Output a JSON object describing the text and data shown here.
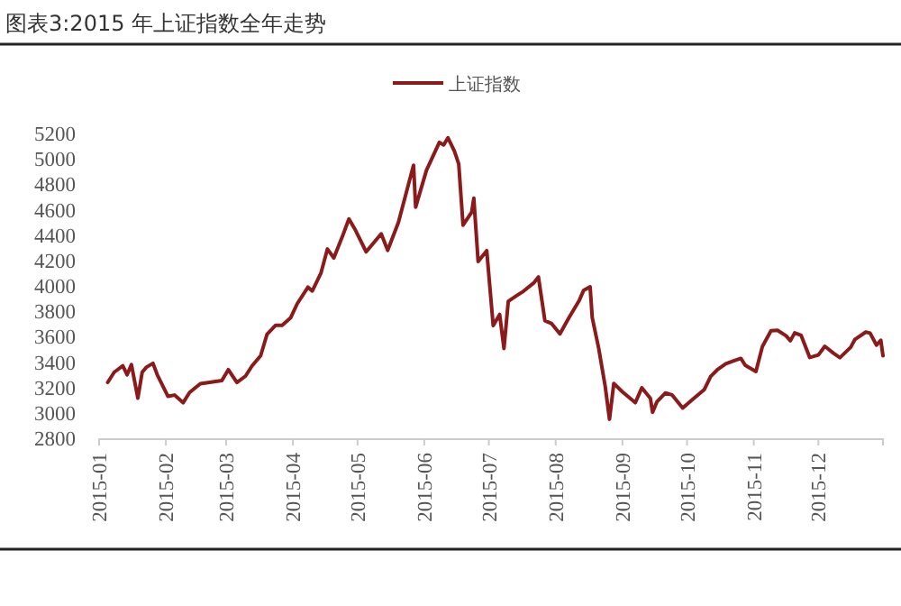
{
  "chart_data": {
    "type": "line",
    "title": "图表3:2015 年上证指数全年走势",
    "x": [
      "2015-01-05",
      "2015-01-08",
      "2015-01-12",
      "2015-01-14",
      "2015-01-16",
      "2015-01-19",
      "2015-01-21",
      "2015-01-23",
      "2015-01-26",
      "2015-01-28",
      "2015-02-02",
      "2015-02-05",
      "2015-02-09",
      "2015-02-12",
      "2015-02-17",
      "2015-02-27",
      "2015-03-02",
      "2015-03-06",
      "2015-03-10",
      "2015-03-13",
      "2015-03-17",
      "2015-03-20",
      "2015-03-24",
      "2015-03-27",
      "2015-03-31",
      "2015-04-03",
      "2015-04-08",
      "2015-04-10",
      "2015-04-14",
      "2015-04-17",
      "2015-04-20",
      "2015-04-24",
      "2015-04-27",
      "2015-04-30",
      "2015-05-05",
      "2015-05-12",
      "2015-05-15",
      "2015-05-20",
      "2015-05-27",
      "2015-05-28",
      "2015-06-02",
      "2015-06-05",
      "2015-06-08",
      "2015-06-10",
      "2015-06-12",
      "2015-06-15",
      "2015-06-17",
      "2015-06-19",
      "2015-06-23",
      "2015-06-24",
      "2015-06-26",
      "2015-06-30",
      "2015-07-03",
      "2015-07-06",
      "2015-07-08",
      "2015-07-10",
      "2015-07-14",
      "2015-07-17",
      "2015-07-22",
      "2015-07-24",
      "2015-07-27",
      "2015-07-30",
      "2015-08-03",
      "2015-08-07",
      "2015-08-12",
      "2015-08-14",
      "2015-08-17",
      "2015-08-18",
      "2015-08-21",
      "2015-08-24",
      "2015-08-26",
      "2015-08-28",
      "2015-09-01",
      "2015-09-07",
      "2015-09-10",
      "2015-09-14",
      "2015-09-15",
      "2015-09-17",
      "2015-09-21",
      "2015-09-24",
      "2015-09-29",
      "2015-09-30",
      "2015-10-09",
      "2015-10-12",
      "2015-10-15",
      "2015-10-19",
      "2015-10-23",
      "2015-10-26",
      "2015-10-28",
      "2015-11-02",
      "2015-11-05",
      "2015-11-09",
      "2015-11-12",
      "2015-11-16",
      "2015-11-18",
      "2015-11-20",
      "2015-11-23",
      "2015-11-27",
      "2015-12-01",
      "2015-12-04",
      "2015-12-08",
      "2015-12-11",
      "2015-12-16",
      "2015-12-18",
      "2015-12-23",
      "2015-12-25",
      "2015-12-28",
      "2015-12-30",
      "2015-12-31"
    ],
    "series": [
      {
        "name": "上证指数",
        "color": "#8b1a1a",
        "values": [
          3240,
          3320,
          3370,
          3300,
          3380,
          3116,
          3320,
          3360,
          3390,
          3300,
          3130,
          3140,
          3080,
          3160,
          3230,
          3255,
          3340,
          3240,
          3290,
          3370,
          3450,
          3620,
          3690,
          3690,
          3750,
          3860,
          3990,
          3960,
          4100,
          4290,
          4220,
          4390,
          4527,
          4440,
          4268,
          4410,
          4280,
          4500,
          4950,
          4620,
          4910,
          5020,
          5130,
          5110,
          5166,
          5060,
          4960,
          4478,
          4580,
          4690,
          4192,
          4277,
          3687,
          3775,
          3507,
          3878,
          3924,
          3957,
          4026,
          4070,
          3726,
          3705,
          3622,
          3744,
          3887,
          3965,
          3993,
          3749,
          3508,
          3210,
          2950,
          3232,
          3166,
          3080,
          3197,
          3114,
          3005,
          3086,
          3157,
          3142,
          3038,
          3053,
          3183,
          3287,
          3338,
          3386,
          3412,
          3429,
          3375,
          3326,
          3522,
          3647,
          3650,
          3607,
          3568,
          3630,
          3610,
          3436,
          3456,
          3524,
          3470,
          3435,
          3516,
          3579,
          3636,
          3628,
          3533,
          3572,
          3450
        ]
      }
    ],
    "xlim": [
      "2015-01-01",
      "2015-12-31"
    ],
    "xticks": [
      "2015-01",
      "2015-02",
      "2015-03",
      "2015-04",
      "2015-05",
      "2015-06",
      "2015-07",
      "2015-08",
      "2015-09",
      "2015-10",
      "2015-11",
      "2015-12"
    ],
    "ylim": [
      2800,
      5200
    ],
    "yticks": [
      2800,
      3000,
      3200,
      3400,
      3600,
      3800,
      4000,
      4200,
      4400,
      4600,
      4800,
      5000,
      5200
    ],
    "legend": "top",
    "grid": false,
    "marker": "none",
    "line_style": "solid"
  }
}
